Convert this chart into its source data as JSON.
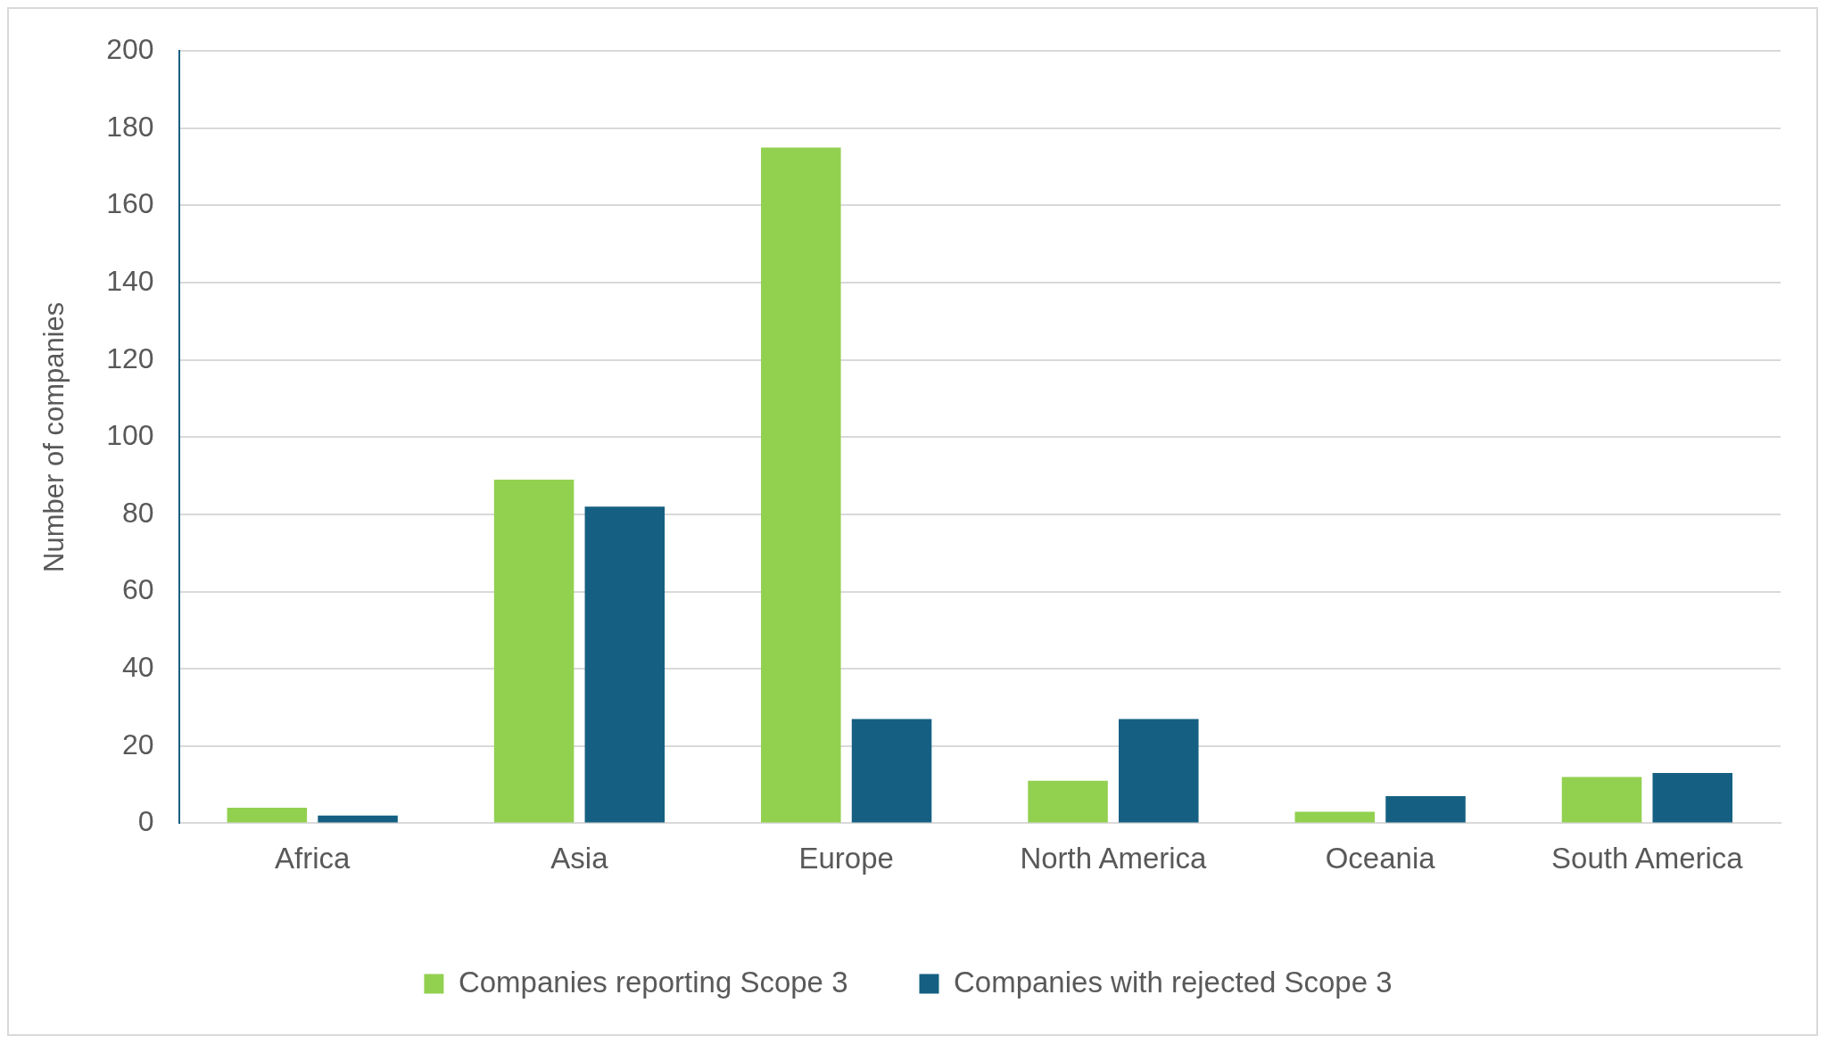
{
  "chart_data": {
    "type": "bar",
    "ylabel": "Number of companies",
    "categories": [
      "Africa",
      "Asia",
      "Europe",
      "North America",
      "Oceania",
      "South America"
    ],
    "series": [
      {
        "name": "Companies reporting Scope 3",
        "color": "#92d050",
        "values": [
          4,
          89,
          175,
          11,
          3,
          12
        ]
      },
      {
        "name": "Companies with rejected Scope 3",
        "color": "#156082",
        "values": [
          2,
          82,
          27,
          27,
          7,
          13
        ]
      }
    ],
    "ylim": [
      0,
      200
    ],
    "yticks": [
      0,
      20,
      40,
      60,
      80,
      100,
      120,
      140,
      160,
      180,
      200
    ],
    "grid": "y",
    "legend": "bottom"
  }
}
